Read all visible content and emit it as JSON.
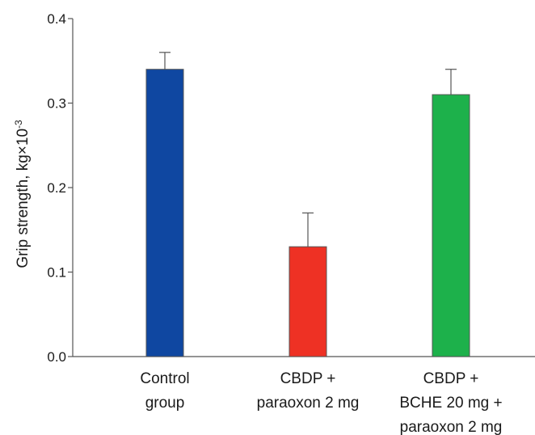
{
  "chart_data": {
    "type": "bar",
    "title": "",
    "xlabel": "",
    "ylabel": {
      "text": "Grip strength, kg×10",
      "superscript": "-3"
    },
    "ylim": [
      0,
      0.4
    ],
    "yticks": [
      "0.0",
      "0.1",
      "0.2",
      "0.3",
      "0.4"
    ],
    "categories": [
      [
        "Control",
        "group"
      ],
      [
        "CBDP +",
        "paraoxon 2 mg"
      ],
      [
        "CBDP +",
        "BCHE 20 mg +",
        "paraoxon 2 mg"
      ]
    ],
    "values": [
      0.34,
      0.13,
      0.31
    ],
    "error_upper": [
      0.02,
      0.04,
      0.03
    ],
    "colors": [
      "#0f47a1",
      "#ee3124",
      "#1db14b"
    ],
    "grid": false,
    "legend": "none"
  }
}
